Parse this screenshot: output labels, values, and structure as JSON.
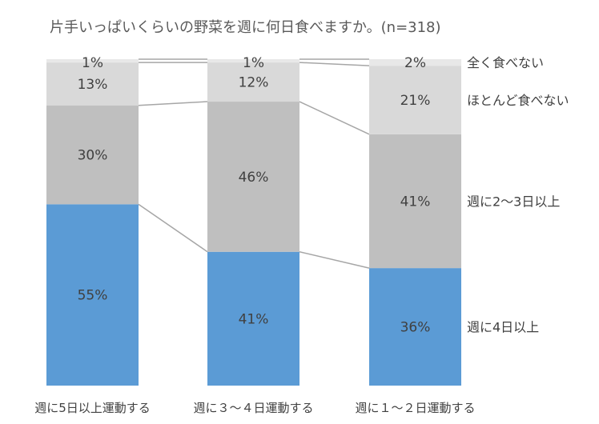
{
  "chart_data": {
    "type": "bar",
    "stacked": true,
    "percent": true,
    "title": "片手いっぱいくらいの野菜を週に何日食べますか。(n=318)",
    "categories": [
      "週に5日以上運動する",
      "週に３～４日運動する",
      "週に１～２日運動する"
    ],
    "series": [
      {
        "name": "週に4日以上",
        "values": [
          55,
          41,
          36
        ],
        "labels": [
          "55%",
          "41%",
          "36%"
        ],
        "color": "#5b9bd5"
      },
      {
        "name": "週に2〜3日以上",
        "values": [
          30,
          46,
          41
        ],
        "labels": [
          "30%",
          "46%",
          "41%"
        ],
        "color": "#bfbfbf"
      },
      {
        "name": "ほとんど食べない",
        "values": [
          13,
          12,
          21
        ],
        "labels": [
          "13%",
          "12%",
          "21%"
        ],
        "color": "#d9d9d9"
      },
      {
        "name": "全く食べない",
        "values": [
          1,
          1,
          2
        ],
        "labels": [
          "1%",
          "1%",
          "2%"
        ],
        "color": "#e8e8e8"
      }
    ],
    "ylim": [
      0,
      100
    ],
    "xlabel": "",
    "ylabel": "",
    "legend": "right",
    "grid": false,
    "series_lines": true,
    "colors": {
      "text": "#404040",
      "title": "#595959",
      "connector": "#a6a6a6"
    }
  }
}
